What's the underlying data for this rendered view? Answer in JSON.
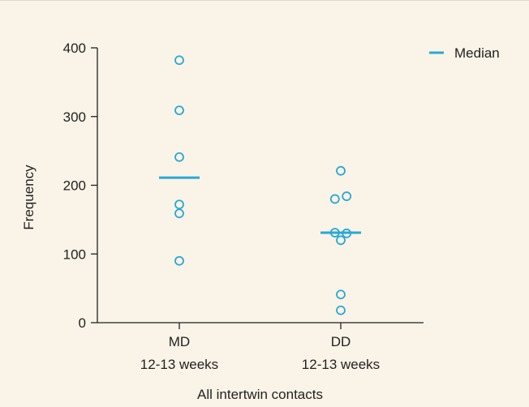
{
  "chart_data": {
    "type": "scatter",
    "title": "",
    "xlabel": "All intertwin contacts",
    "ylabel": "Frequency",
    "ylim": [
      0,
      400
    ],
    "yticks": [
      0,
      100,
      200,
      300,
      400
    ],
    "grid": false,
    "categories": [
      {
        "line1": "MD",
        "line2": "12-13 weeks"
      },
      {
        "line1": "DD",
        "line2": "12-13 weeks"
      }
    ],
    "series": [
      {
        "category": "MD",
        "points": [
          {
            "offset": 0,
            "value": 382
          },
          {
            "offset": 0,
            "value": 309
          },
          {
            "offset": 0,
            "value": 241
          },
          {
            "offset": 0,
            "value": 172
          },
          {
            "offset": 0,
            "value": 159
          },
          {
            "offset": 0,
            "value": 90
          }
        ],
        "median": 211
      },
      {
        "category": "DD",
        "points": [
          {
            "offset": 0,
            "value": 221
          },
          {
            "offset": -0.3,
            "value": 180
          },
          {
            "offset": 0.3,
            "value": 184
          },
          {
            "offset": -0.3,
            "value": 131
          },
          {
            "offset": 0.3,
            "value": 130
          },
          {
            "offset": 0,
            "value": 120
          },
          {
            "offset": 0,
            "value": 41
          },
          {
            "offset": 0,
            "value": 18
          }
        ],
        "median": 131
      }
    ],
    "legend": {
      "label": "Median",
      "placement": "top-right"
    },
    "colors": {
      "marker": "#29a8d6",
      "axis": "#231f20",
      "background": "#f9f4e7"
    }
  }
}
